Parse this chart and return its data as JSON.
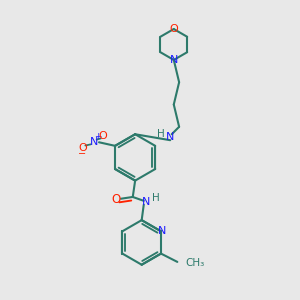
{
  "background_color": "#e8e8e8",
  "bond_color": "#2d7a6b",
  "N_color": "#1a1aff",
  "O_color": "#ff2200",
  "line_width": 1.5,
  "figsize": [
    3.0,
    3.0
  ],
  "dpi": 100,
  "xlim": [
    0,
    10
  ],
  "ylim": [
    0,
    10
  ]
}
